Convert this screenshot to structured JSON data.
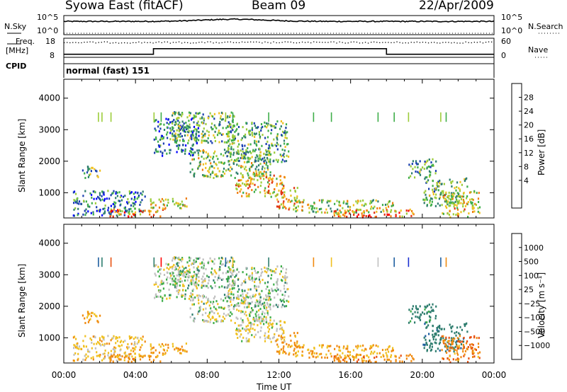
{
  "header": {
    "station": "Syowa East (fitACF)",
    "beam": "Beam 09",
    "date": "22/Apr/2009"
  },
  "noise_panel": {
    "left_label": "N.Sky",
    "right_label": "N.Search",
    "left_ticks": [
      "10^5",
      "10^0"
    ],
    "right_ticks": [
      "10^5",
      "10^0"
    ]
  },
  "freq_panel": {
    "left_label_line1": "Freq.",
    "left_label_line2": "[MHz]",
    "right_label": "Nave",
    "left_ticks": [
      "18",
      "8"
    ],
    "right_ticks": [
      "60",
      "0"
    ]
  },
  "cpid": {
    "label": "CPID",
    "program": "normal (fast) 151"
  },
  "power_panel": {
    "ylabel": "Slant Range [km]",
    "colorbar_label": "Power [dB]",
    "colorbar_ticks": [
      "28",
      "24",
      "20",
      "16",
      "12",
      "8",
      "4"
    ],
    "colors": [
      "#0000ff",
      "#1a3fb0",
      "#2e7d6e",
      "#3fae4a",
      "#9ccc3a",
      "#f0c020",
      "#f07d10",
      "#e03010",
      "#ff0000"
    ]
  },
  "velocity_panel": {
    "ylabel": "Slant Range [km]",
    "colorbar_label": "Velocity  [m s⁻¹]",
    "colorbar_ticks": [
      "1000",
      "500",
      "100",
      "25",
      "−25",
      "−100",
      "−500",
      "−1000"
    ],
    "colors": [
      "#1a2fd0",
      "#1f5fa0",
      "#2e7d6e",
      "#3fae4a",
      "#c0c0c0",
      "#f0c020",
      "#f08a10",
      "#e85010",
      "#ff0000"
    ]
  },
  "xaxis": {
    "label": "Time UT",
    "ticks": [
      "00:00",
      "04:00",
      "08:00",
      "12:00",
      "16:00",
      "20:00",
      "00:00"
    ]
  },
  "chart_data": {
    "type": "heatmap",
    "title": "Syowa East (fitACF)  Beam 09  22/Apr/2009",
    "xlabel": "Time UT",
    "ylabel": "Slant Range [km]",
    "xlim_hours": [
      0,
      24
    ],
    "ylim_km": [
      200,
      4600
    ],
    "y_ticks_km": [
      1000,
      2000,
      3000,
      4000
    ],
    "frequency_mhz": [
      {
        "from_h": 0,
        "to_h": 5,
        "value": 9.6
      },
      {
        "from_h": 5,
        "to_h": 18,
        "value": 12.5
      },
      {
        "from_h": 18,
        "to_h": 24,
        "value": 9.6
      }
    ],
    "nave_level": 48,
    "power_db_range": [
      0,
      30
    ],
    "velocity_ms_range": [
      -1000,
      1000
    ],
    "scatter_regions": [
      {
        "t0": 1.0,
        "t1": 2.0,
        "r0": 1500,
        "r1": 1900,
        "power": 13,
        "vel": -120
      },
      {
        "t0": 0.5,
        "t1": 4.5,
        "r0": 300,
        "r1": 1100,
        "power": 8,
        "vel": -60
      },
      {
        "t0": 2.5,
        "t1": 5.5,
        "r0": 250,
        "r1": 500,
        "power": 22,
        "vel": -180
      },
      {
        "t0": 4.8,
        "t1": 7.0,
        "r0": 500,
        "r1": 850,
        "power": 18,
        "vel": -120
      },
      {
        "t0": 5.0,
        "t1": 7.5,
        "r0": 2200,
        "r1": 3400,
        "power": 7,
        "vel": 5
      },
      {
        "t0": 6.0,
        "t1": 9.5,
        "r0": 2600,
        "r1": 3600,
        "power": 12,
        "vel": 10
      },
      {
        "t0": 7.0,
        "t1": 11.5,
        "r0": 1500,
        "r1": 2400,
        "power": 14,
        "vel": 5
      },
      {
        "t0": 9.0,
        "t1": 12.5,
        "r0": 2000,
        "r1": 3300,
        "power": 11,
        "vel": 15
      },
      {
        "t0": 9.5,
        "t1": 12.3,
        "r0": 900,
        "r1": 1600,
        "power": 19,
        "vel": -20
      },
      {
        "t0": 11.8,
        "t1": 13.0,
        "r0": 500,
        "r1": 1200,
        "power": 20,
        "vel": -150
      },
      {
        "t0": 12.5,
        "t1": 18.5,
        "r0": 400,
        "r1": 800,
        "power": 15,
        "vel": -90
      },
      {
        "t0": 15.0,
        "t1": 19.5,
        "r0": 250,
        "r1": 500,
        "power": 21,
        "vel": -200
      },
      {
        "t0": 19.2,
        "t1": 20.8,
        "r0": 1500,
        "r1": 2100,
        "power": 10,
        "vel": 120
      },
      {
        "t0": 20.0,
        "t1": 22.5,
        "r0": 600,
        "r1": 1500,
        "power": 13,
        "vel": 200
      },
      {
        "t0": 21.0,
        "t1": 23.2,
        "r0": 250,
        "r1": 1100,
        "power": 17,
        "vel": -250
      }
    ]
  }
}
